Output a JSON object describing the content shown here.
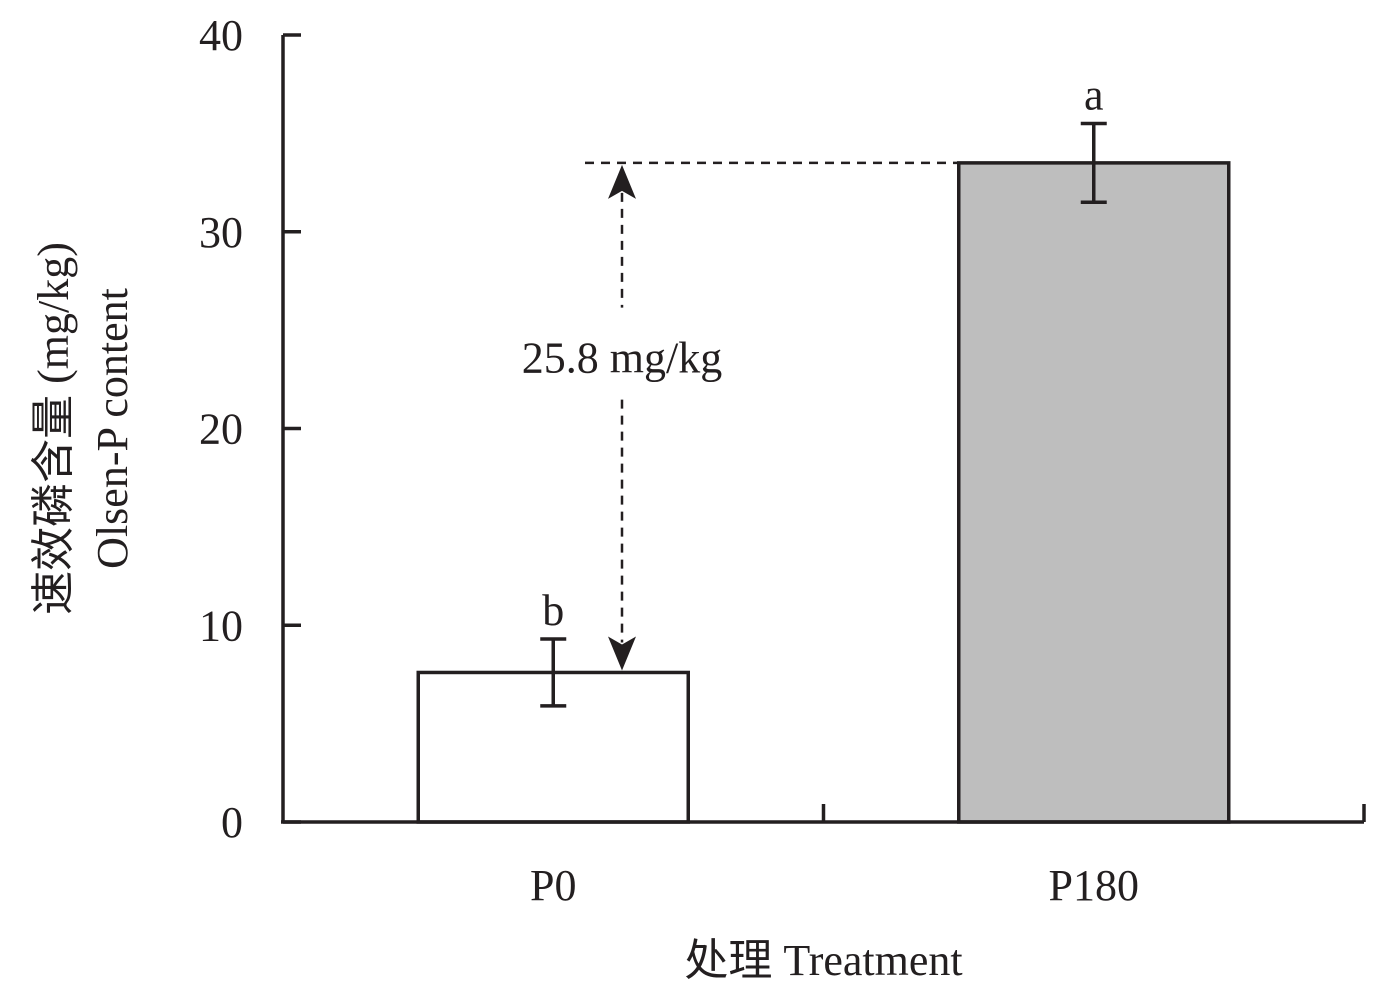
{
  "chart_data": {
    "type": "bar",
    "categories": [
      "P0",
      "P180"
    ],
    "values": [
      7.6,
      33.5
    ],
    "error": [
      1.7,
      2.0
    ],
    "significance": [
      "b",
      "a"
    ],
    "colors": [
      "#ffffff",
      "#bebebe"
    ],
    "xlabel": "处理 Treatment",
    "ylabel_lines": [
      "速效磷含量 (mg/kg)",
      "Olsen-P content"
    ],
    "ylim": [
      0,
      40
    ],
    "yticks": [
      0,
      10,
      20,
      30,
      40
    ],
    "grid": false,
    "legend": "none",
    "annotation": {
      "text": "25.8 mg/kg",
      "from_value": 7.6,
      "to_value": 33.5
    }
  }
}
